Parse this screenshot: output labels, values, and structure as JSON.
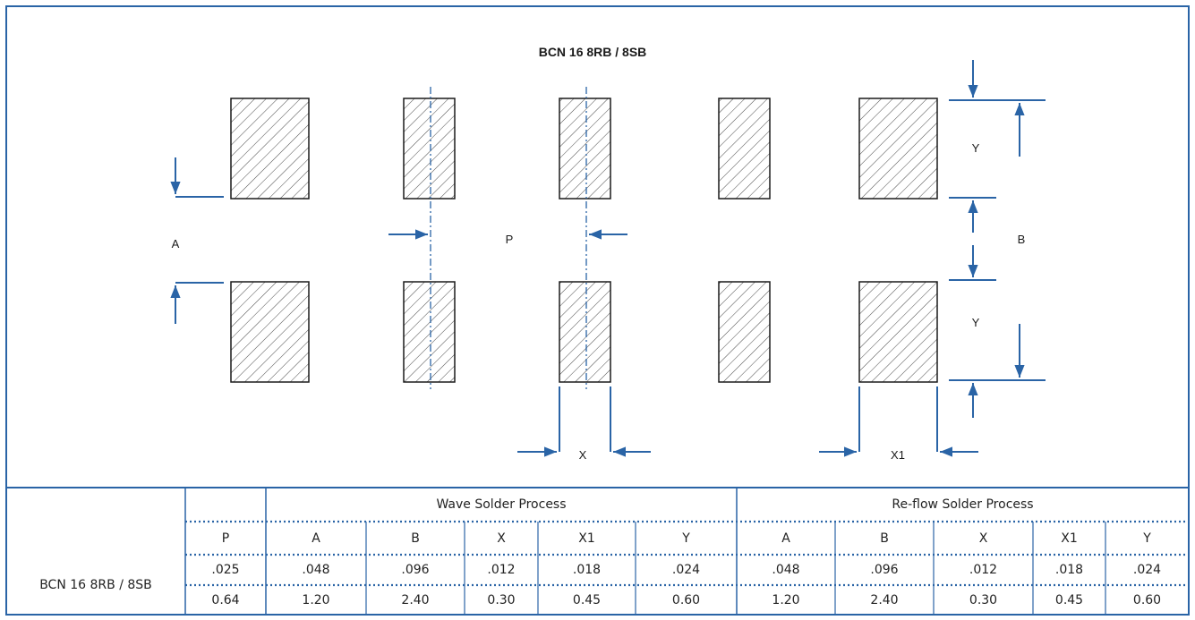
{
  "diagram": {
    "title": "BCN 16 8RB / 8SB",
    "labels": {
      "A": "A",
      "P": "P",
      "B": "B",
      "Y_top": "Y",
      "Y_bottom": "Y",
      "X": "X",
      "X1": "X1"
    }
  },
  "colors": {
    "border": "#2a64a6",
    "arrow": "#2a64a6",
    "pad": "#1a1a1a"
  },
  "table": {
    "row_label": "BCN 16 8RB / 8SB",
    "groups": [
      "Wave Solder Process",
      "Re-flow Solder Process"
    ],
    "headers": [
      "P",
      "A",
      "B",
      "X",
      "X1",
      "Y",
      "A",
      "B",
      "X",
      "X1",
      "Y"
    ],
    "inch_values": [
      ".025",
      ".048",
      ".096",
      ".012",
      ".018",
      ".024",
      ".048",
      ".096",
      ".012",
      ".018",
      ".024"
    ],
    "mm_values": [
      "0.64",
      "1.20",
      "2.40",
      "0.30",
      "0.45",
      "0.60",
      "1.20",
      "2.40",
      "0.30",
      "0.45",
      "0.60"
    ]
  }
}
